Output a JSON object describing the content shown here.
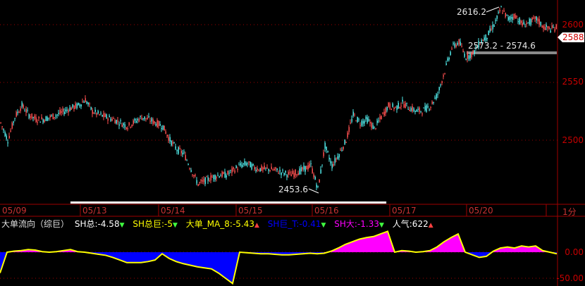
{
  "chart_data": {
    "type": "candlestick-with-indicator",
    "dates": [
      "05/09",
      "05/13",
      "05/14",
      "05/15",
      "05/16",
      "05/17",
      "05/20"
    ],
    "period_label": "1分",
    "price_axis": {
      "ticks": [
        2600,
        2550,
        2500
      ],
      "range": [
        2440,
        2622
      ]
    },
    "price_close": [
      2515,
      2500,
      2520,
      2530,
      2522,
      2518,
      2518,
      2520,
      2522,
      2525,
      2528,
      2530,
      2535,
      2525,
      2522,
      2520,
      2518,
      2515,
      2512,
      2516,
      2520,
      2518,
      2515,
      2512,
      2500,
      2492,
      2488,
      2475,
      2462,
      2465,
      2468,
      2470,
      2470,
      2474,
      2478,
      2480,
      2476,
      2475,
      2475,
      2474,
      2472,
      2470,
      2472,
      2475,
      2478,
      2458,
      2495,
      2478,
      2488,
      2500,
      2522,
      2515,
      2518,
      2510,
      2520,
      2530,
      2528,
      2532,
      2528,
      2525,
      2526,
      2530,
      2540,
      2560,
      2580,
      2585,
      2572,
      2575,
      2585,
      2590,
      2600,
      2614,
      2605,
      2608,
      2600,
      2602,
      2605,
      2598,
      2596,
      2598
    ],
    "last_price": "2588",
    "high_label": "2616.2",
    "low_label": "2453.6",
    "range_label": "2573.2 - 2574.6",
    "indicator": {
      "title": "大单流向（综巨）",
      "axis_ticks": [
        "0.00",
        "-50.00"
      ],
      "values": [
        -40,
        0,
        2,
        3,
        5,
        4,
        1,
        0,
        1,
        3,
        5,
        1,
        0,
        -2,
        -4,
        -6,
        -10,
        -15,
        -20,
        -20,
        -20,
        -18,
        -15,
        -3,
        -12,
        -18,
        -22,
        -25,
        -28,
        -30,
        -32,
        -40,
        -50,
        -60,
        0,
        -1,
        -2,
        -3,
        -3,
        -4,
        -5,
        -5,
        -4,
        -3,
        -2,
        -3,
        -2,
        2,
        8,
        15,
        20,
        25,
        28,
        30,
        35,
        40,
        0,
        3,
        2,
        0,
        1,
        3,
        10,
        20,
        28,
        35,
        0,
        -5,
        -10,
        -8,
        2,
        8,
        10,
        8,
        12,
        10,
        12,
        3,
        0,
        -3
      ],
      "readouts": [
        {
          "label": "SH总:-4.58",
          "arrow": "▼",
          "dir": "dn",
          "color": "#ffffff"
        },
        {
          "label": "SH总巨:-5",
          "arrow": "▼",
          "dir": "dn",
          "color": "#ffff00"
        },
        {
          "label": "大单_MA_8:-5.43",
          "arrow": "▲",
          "dir": "up",
          "color": "#ffff00"
        },
        {
          "label": "SH巨_T:-0.41",
          "arrow": "▼",
          "dir": "dn",
          "color": "#0000ff"
        },
        {
          "label": "SH大:-1.33",
          "arrow": "▼",
          "dir": "dn",
          "color": "#ff00ff"
        },
        {
          "label": "人气:622",
          "arrow": "▲",
          "dir": "up",
          "color": "#ffffff"
        }
      ]
    },
    "colors": {
      "up": "#ff5050",
      "down": "#50e8e8",
      "positive_fill": "#ff00ff",
      "negative_fill": "#0000ff",
      "line": "#ffff00",
      "grid": "#a00000"
    }
  }
}
